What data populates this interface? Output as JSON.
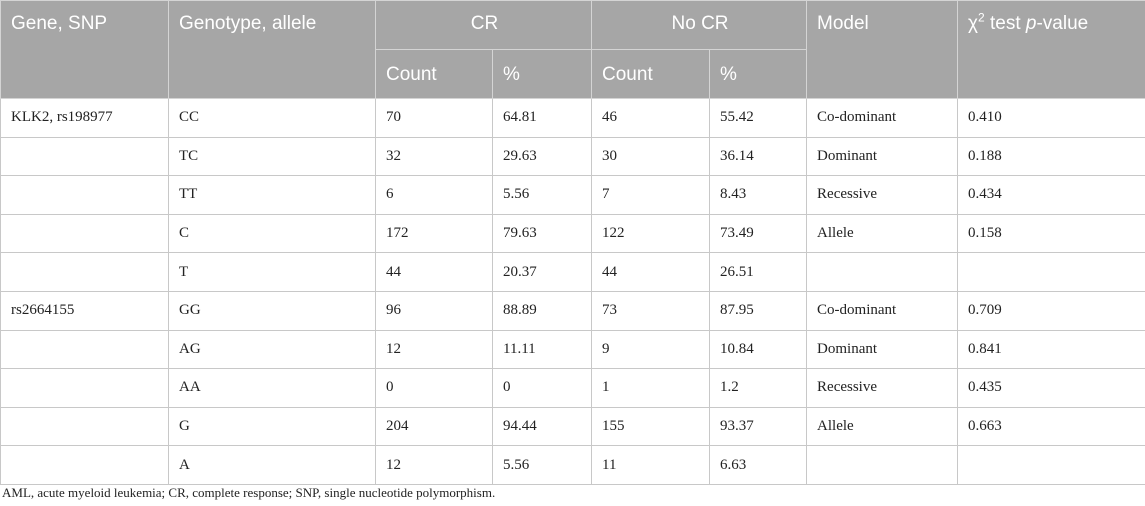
{
  "table": {
    "headers": {
      "gene_snp": "Gene, SNP",
      "genotype_allele": "Genotype, allele",
      "cr": "CR",
      "no_cr": "No CR",
      "model": "Model",
      "chi_symbol": "χ",
      "chi_sup": "2",
      "chi_test": " test ",
      "p_italic": "p",
      "p_value_suffix": "-value",
      "count": "Count",
      "percent": "%"
    },
    "rows": [
      {
        "gene": "KLK2, rs198977",
        "genotype": "CC",
        "cr_count": "70",
        "cr_pct": "64.81",
        "nocr_count": "46",
        "nocr_pct": "55.42",
        "model": "Co-dominant",
        "p": "0.410"
      },
      {
        "gene": "",
        "genotype": "TC",
        "cr_count": "32",
        "cr_pct": "29.63",
        "nocr_count": "30",
        "nocr_pct": "36.14",
        "model": "Dominant",
        "p": "0.188"
      },
      {
        "gene": "",
        "genotype": "TT",
        "cr_count": "6",
        "cr_pct": "5.56",
        "nocr_count": "7",
        "nocr_pct": "8.43",
        "model": "Recessive",
        "p": "0.434"
      },
      {
        "gene": "",
        "genotype": "C",
        "cr_count": "172",
        "cr_pct": "79.63",
        "nocr_count": "122",
        "nocr_pct": "73.49",
        "model": "Allele",
        "p": "0.158"
      },
      {
        "gene": "",
        "genotype": "T",
        "cr_count": "44",
        "cr_pct": "20.37",
        "nocr_count": "44",
        "nocr_pct": "26.51",
        "model": "",
        "p": ""
      },
      {
        "gene": "rs2664155",
        "genotype": "GG",
        "cr_count": "96",
        "cr_pct": "88.89",
        "nocr_count": "73",
        "nocr_pct": "87.95",
        "model": "Co-dominant",
        "p": "0.709"
      },
      {
        "gene": "",
        "genotype": "AG",
        "cr_count": "12",
        "cr_pct": "11.11",
        "nocr_count": "9",
        "nocr_pct": "10.84",
        "model": "Dominant",
        "p": "0.841"
      },
      {
        "gene": "",
        "genotype": "AA",
        "cr_count": "0",
        "cr_pct": "0",
        "nocr_count": "1",
        "nocr_pct": "1.2",
        "model": "Recessive",
        "p": "0.435"
      },
      {
        "gene": "",
        "genotype": "G",
        "cr_count": "204",
        "cr_pct": "94.44",
        "nocr_count": "155",
        "nocr_pct": "93.37",
        "model": "Allele",
        "p": "0.663"
      },
      {
        "gene": "",
        "genotype": "A",
        "cr_count": "12",
        "cr_pct": "5.56",
        "nocr_count": "11",
        "nocr_pct": "6.63",
        "model": "",
        "p": ""
      }
    ]
  },
  "footnote": "AML, acute myeloid leukemia; CR, complete response; SNP, single nucleotide polymorphism."
}
